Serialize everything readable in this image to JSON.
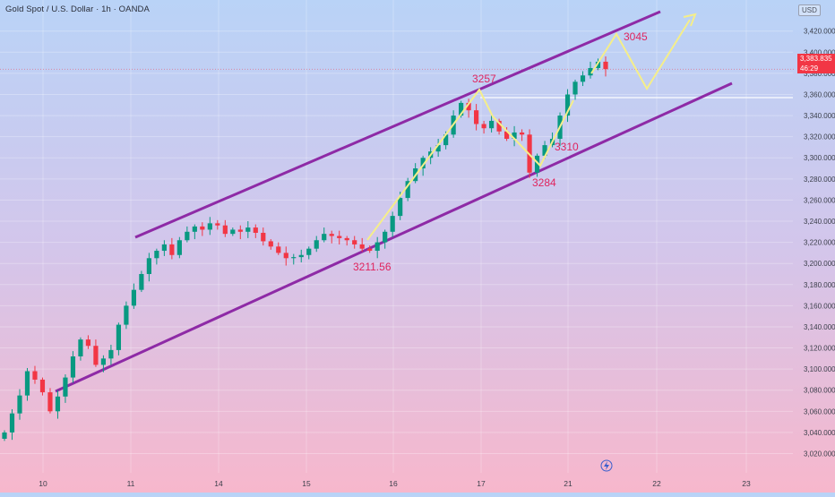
{
  "header": {
    "title": "Gold Spot / U.S. Dollar · 1h · OANDA",
    "currency": "USD"
  },
  "price_tag": {
    "price": "3,383.835",
    "countdown": "46:29"
  },
  "colors": {
    "up": "#089981",
    "down": "#f23645",
    "channel": "#8e2aa6",
    "projection": "#f5ee8a",
    "annotation": "#e0245e"
  },
  "chart_data": {
    "type": "candlestick",
    "title": "Gold Spot / U.S. Dollar · 1h · OANDA",
    "y_unit": "USD",
    "ylim": [
      3010,
      3432
    ],
    "y_ticks": [
      "3,020.000",
      "3,040.000",
      "3,060.000",
      "3,080.000",
      "3,100.000",
      "3,120.000",
      "3,140.000",
      "3,160.000",
      "3,180.000",
      "3,200.000",
      "3,220.000",
      "3,240.000",
      "3,260.000",
      "3,280.000",
      "3,300.000",
      "3,320.000",
      "3,340.000",
      "3,360.000",
      "3,380.000",
      "3,400.000",
      "3,420.000"
    ],
    "x_ticks": [
      "10",
      "11",
      "14",
      "15",
      "16",
      "17",
      "21",
      "22",
      "23"
    ],
    "current_price": 3383.835,
    "resistance_level": 3357,
    "annotations": [
      "3257",
      "3284",
      "3310",
      "3211.56",
      "3045"
    ],
    "close_path": [
      3040,
      3058,
      3075,
      3098,
      3090,
      3078,
      3060,
      3074,
      3092,
      3112,
      3128,
      3122,
      3104,
      3110,
      3118,
      3142,
      3160,
      3175,
      3190,
      3205,
      3212,
      3218,
      3208,
      3222,
      3230,
      3235,
      3232,
      3238,
      3236,
      3228,
      3232,
      3230,
      3234,
      3229,
      3221,
      3216,
      3210,
      3205,
      3206,
      3208,
      3214,
      3222,
      3228,
      3226,
      3224,
      3222,
      3218,
      3214,
      3212,
      3220,
      3230,
      3245,
      3262,
      3278,
      3290,
      3300,
      3306,
      3312,
      3322,
      3340,
      3352,
      3345,
      3332,
      3328,
      3335,
      3325,
      3318,
      3324,
      3322,
      3286,
      3302,
      3312,
      3318,
      3340,
      3360,
      3372,
      3378,
      3385,
      3391,
      3384
    ]
  }
}
